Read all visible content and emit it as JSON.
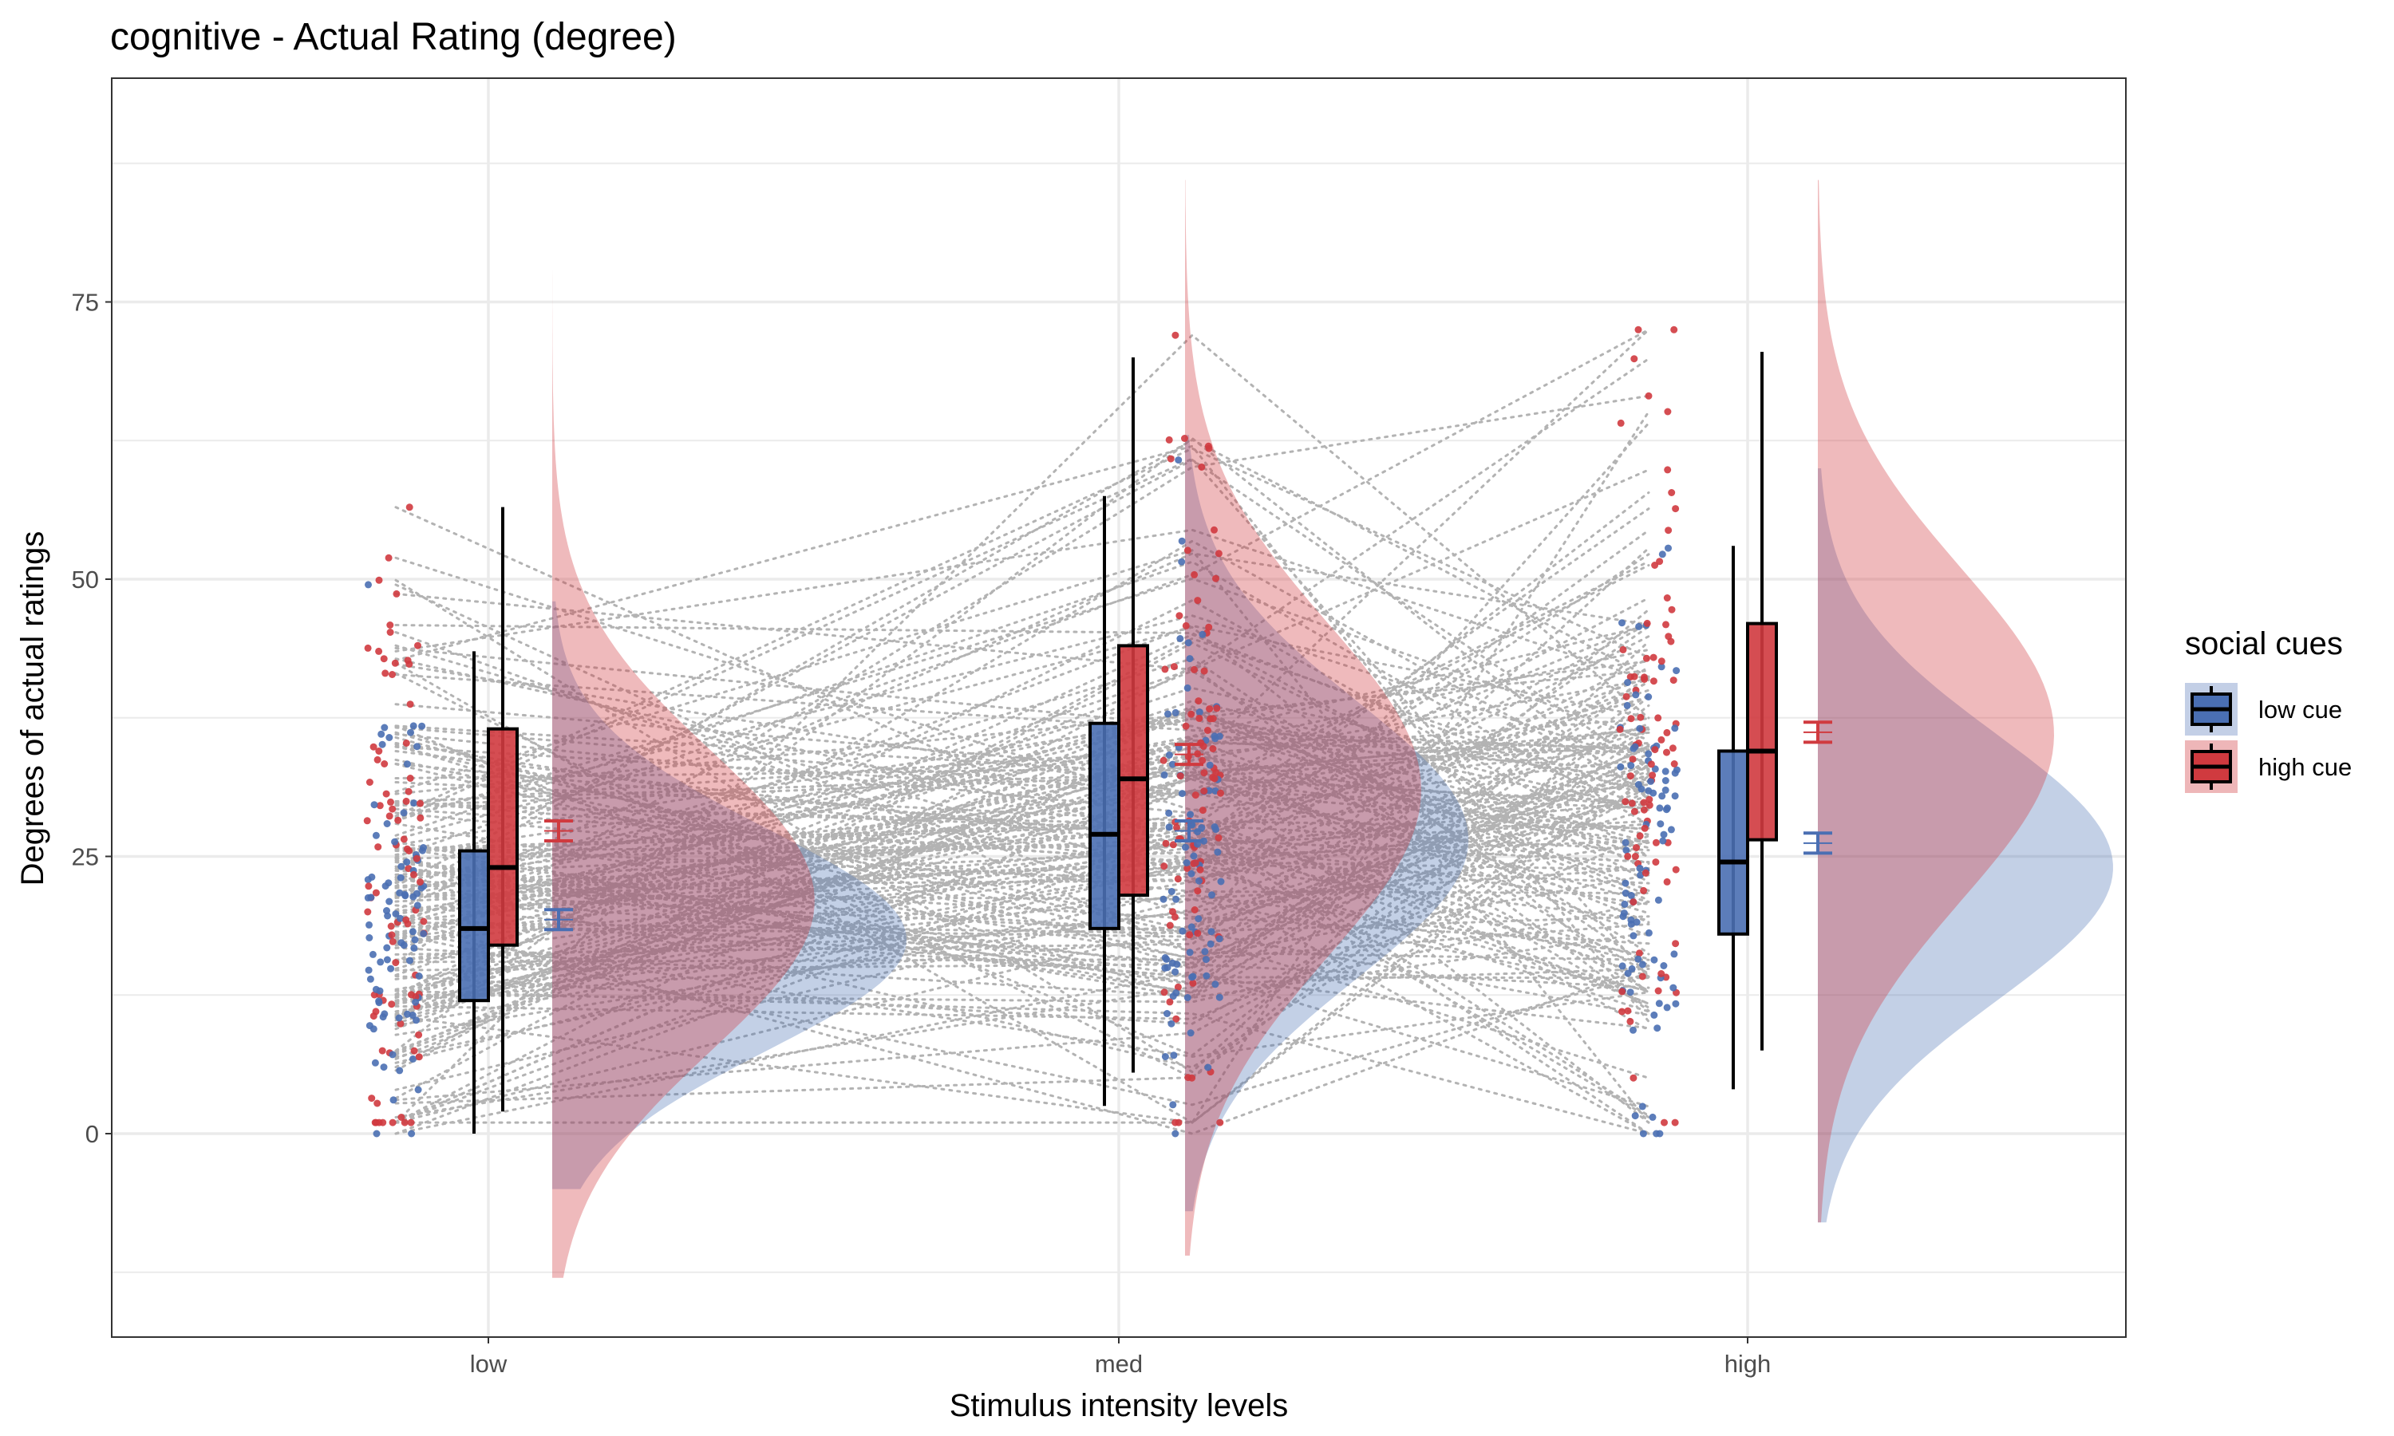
{
  "chart_data": {
    "type": "raincloud",
    "title": "cognitive  - Actual Rating (degree)",
    "xlabel": "Stimulus intensity levels",
    "ylabel": "Degrees of actual ratings",
    "categories": [
      "low",
      "med",
      "high"
    ],
    "y_ticks": [
      0,
      25,
      50,
      75
    ],
    "ylim": [
      -18,
      92
    ],
    "grid": true,
    "legend": {
      "title": "social cues",
      "position": "right",
      "entries": [
        "low cue",
        "high cue"
      ]
    },
    "series": [
      {
        "name": "low cue",
        "color": "#4a6fb3",
        "box": [
          {
            "category": "low",
            "min": 0,
            "q1": 12,
            "median": 18.5,
            "q3": 25.5,
            "max": 43.5
          },
          {
            "category": "med",
            "min": 2.5,
            "q1": 18.5,
            "median": 27,
            "q3": 37,
            "max": 57.5
          },
          {
            "category": "high",
            "min": 4,
            "q1": 18,
            "median": 24.5,
            "q3": 34.5,
            "max": 53
          }
        ],
        "mean_se": [
          {
            "category": "low",
            "mean": 19.3,
            "se": 0.9
          },
          {
            "category": "med",
            "mean": 27.3,
            "se": 0.9
          },
          {
            "category": "high",
            "mean": 26.2,
            "se": 0.9
          }
        ],
        "density": [
          {
            "category": "low",
            "mean": 17.5,
            "sd": 10,
            "range": [
              -5,
              48
            ]
          },
          {
            "category": "med",
            "mean": 26.5,
            "sd": 12.5,
            "range": [
              -7,
              63
            ]
          },
          {
            "category": "high",
            "mean": 24,
            "sd": 12,
            "range": [
              -8,
              60
            ]
          }
        ]
      },
      {
        "name": "high cue",
        "color": "#d03a3f",
        "box": [
          {
            "category": "low",
            "min": 2,
            "q1": 17,
            "median": 24,
            "q3": 36.5,
            "max": 56.5
          },
          {
            "category": "med",
            "min": 5.5,
            "q1": 21.5,
            "median": 32,
            "q3": 44,
            "max": 70
          },
          {
            "category": "high",
            "min": 7.5,
            "q1": 26.5,
            "median": 34.5,
            "q3": 46,
            "max": 70.5
          }
        ],
        "mean_se": [
          {
            "category": "low",
            "mean": 27.3,
            "se": 0.9
          },
          {
            "category": "med",
            "mean": 34.2,
            "se": 0.9
          },
          {
            "category": "high",
            "mean": 36.2,
            "se": 0.9
          }
        ],
        "density": [
          {
            "category": "low",
            "mean": 21,
            "sd": 13.5,
            "range": [
              -13,
              90
            ]
          },
          {
            "category": "med",
            "mean": 31,
            "sd": 15,
            "range": [
              -11,
              86
            ]
          },
          {
            "category": "high",
            "mean": 36,
            "sd": 15,
            "range": [
              -8,
              86
            ]
          }
        ]
      }
    ]
  },
  "colors": {
    "low_cue": "#4a6fb3",
    "high_cue": "#d03a3f",
    "low_cue_cloud": "#c3cfe6",
    "high_cue_cloud": "#eeb6b8",
    "overlap_cloud": "#b98499",
    "grid": "#ebebeb",
    "panel_border": "#333333",
    "connector": "#b3b3b3"
  }
}
